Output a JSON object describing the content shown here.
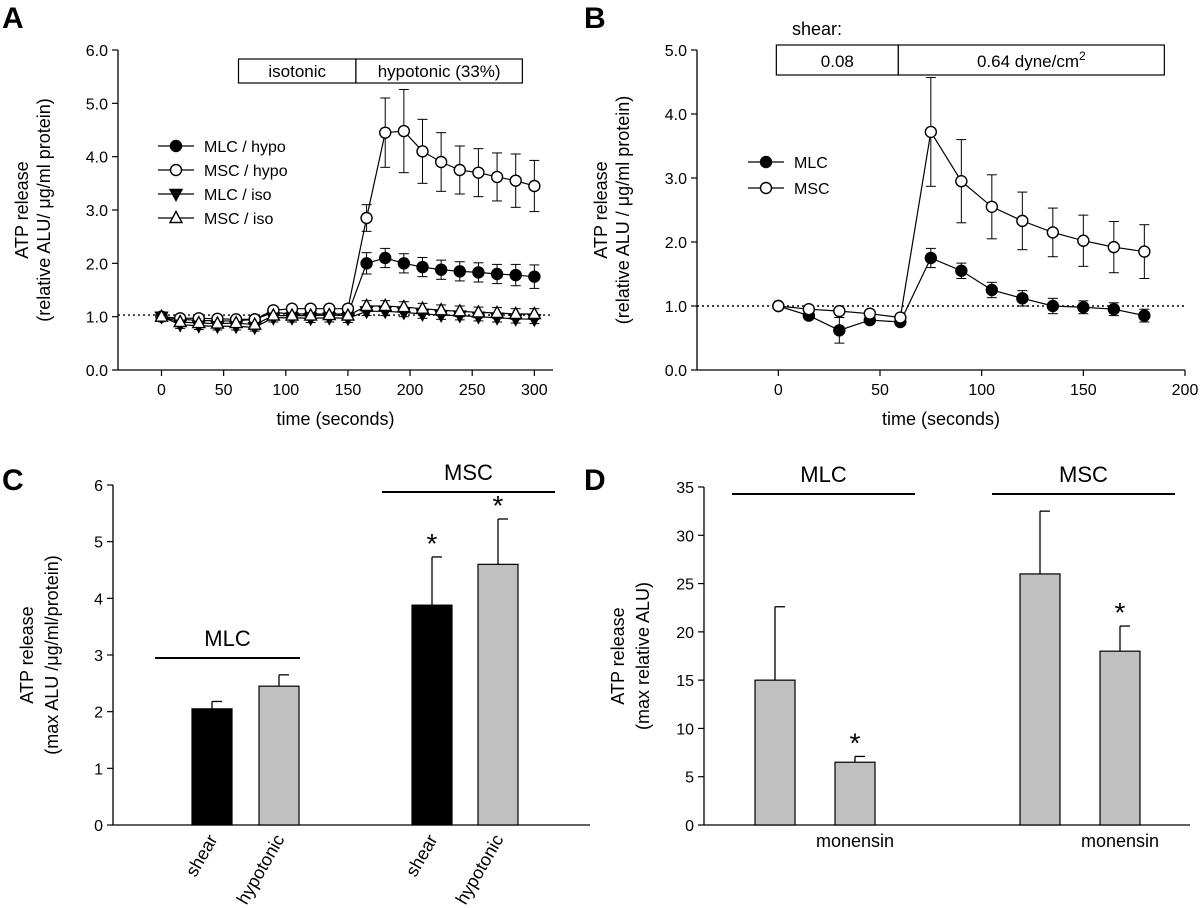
{
  "chart_data": [
    {
      "panel": "A",
      "type": "line",
      "xlabel": "time (seconds)",
      "ylabel": [
        "ATP release",
        "(relative ALU/ μg/ml protein)"
      ],
      "xlim": [
        -35,
        315
      ],
      "ylim": [
        0,
        6
      ],
      "xticks": [
        0,
        50,
        100,
        150,
        200,
        250,
        300
      ],
      "yticks": [
        0,
        1,
        2,
        3,
        4,
        5,
        6
      ],
      "xtick_labels": [
        "0",
        "50",
        "100",
        "150",
        "200",
        "250",
        "300"
      ],
      "ytick_labels": [
        "0.0",
        "1.0",
        "2.0",
        "3.0",
        "4.0",
        "5.0",
        "6.0"
      ],
      "baseline": 1.03,
      "boxes": [
        "isotonic",
        "hypotonic (33%)"
      ],
      "x": [
        0,
        15,
        30,
        45,
        60,
        75,
        90,
        105,
        120,
        135,
        150,
        165,
        180,
        195,
        210,
        225,
        240,
        255,
        270,
        285,
        300
      ],
      "series": [
        {
          "name": "MLC / hypo",
          "marker": "circle-filled",
          "values": [
            1.0,
            0.95,
            0.93,
            0.92,
            0.92,
            0.95,
            1.08,
            1.05,
            1.05,
            1.05,
            1.05,
            2.0,
            2.1,
            2.0,
            1.93,
            1.88,
            1.85,
            1.83,
            1.8,
            1.78,
            1.75
          ],
          "errors": [
            0.05,
            0.06,
            0.06,
            0.06,
            0.06,
            0.06,
            0.08,
            0.08,
            0.08,
            0.08,
            0.08,
            0.2,
            0.18,
            0.18,
            0.18,
            0.18,
            0.18,
            0.18,
            0.18,
            0.2,
            0.22
          ]
        },
        {
          "name": "MSC / hypo",
          "marker": "circle-open",
          "values": [
            1.0,
            0.97,
            0.97,
            0.96,
            0.95,
            0.95,
            1.12,
            1.15,
            1.15,
            1.15,
            1.15,
            2.85,
            4.45,
            4.48,
            4.1,
            3.9,
            3.75,
            3.7,
            3.62,
            3.55,
            3.45
          ],
          "errors": [
            0.05,
            0.05,
            0.05,
            0.05,
            0.05,
            0.05,
            0.06,
            0.06,
            0.06,
            0.06,
            0.06,
            0.25,
            0.65,
            0.78,
            0.6,
            0.55,
            0.45,
            0.45,
            0.45,
            0.5,
            0.48
          ]
        },
        {
          "name": "MLC / iso",
          "marker": "triangle-down-filled",
          "values": [
            1.0,
            0.85,
            0.83,
            0.82,
            0.82,
            0.8,
            0.98,
            0.98,
            0.97,
            0.98,
            0.97,
            1.1,
            1.1,
            1.08,
            1.05,
            1.03,
            1.02,
            1.0,
            0.98,
            0.96,
            0.95
          ],
          "errors": [
            0.05,
            0.07,
            0.07,
            0.07,
            0.07,
            0.07,
            0.08,
            0.08,
            0.08,
            0.08,
            0.08,
            0.08,
            0.08,
            0.08,
            0.08,
            0.08,
            0.08,
            0.08,
            0.08,
            0.08,
            0.08
          ]
        },
        {
          "name": "MSC / iso",
          "marker": "triangle-up-open",
          "values": [
            1.0,
            0.9,
            0.88,
            0.87,
            0.88,
            0.85,
            1.02,
            1.02,
            1.02,
            1.03,
            1.02,
            1.2,
            1.2,
            1.18,
            1.15,
            1.12,
            1.1,
            1.08,
            1.07,
            1.05,
            1.05
          ],
          "errors": [
            0.05,
            0.07,
            0.07,
            0.07,
            0.07,
            0.07,
            0.08,
            0.08,
            0.08,
            0.08,
            0.08,
            0.1,
            0.1,
            0.1,
            0.1,
            0.1,
            0.1,
            0.1,
            0.1,
            0.1,
            0.1
          ]
        }
      ]
    },
    {
      "panel": "B",
      "type": "line",
      "xlabel": "time (seconds)",
      "ylabel": [
        "ATP release",
        "(relative ALU / μg/ml protein)"
      ],
      "xlim": [
        -40,
        200
      ],
      "ylim": [
        0,
        5
      ],
      "xticks": [
        0,
        50,
        100,
        150,
        200
      ],
      "yticks": [
        0,
        1,
        2,
        3,
        4,
        5
      ],
      "xtick_labels": [
        "0",
        "50",
        "100",
        "150",
        "200"
      ],
      "ytick_labels": [
        "0.0",
        "1.0",
        "2.0",
        "3.0",
        "4.0",
        "5.0"
      ],
      "baseline": 1.0,
      "shear_label": "shear:",
      "boxes": [
        "0.08",
        "0.64 dyne/cm",
        "2"
      ],
      "x": [
        0,
        15,
        30,
        45,
        60,
        75,
        90,
        105,
        120,
        135,
        150,
        165,
        180
      ],
      "series": [
        {
          "name": "MLC",
          "marker": "circle-filled",
          "values": [
            1.0,
            0.85,
            0.62,
            0.78,
            0.75,
            1.75,
            1.55,
            1.25,
            1.12,
            1.0,
            0.98,
            0.95,
            0.85
          ],
          "errors": [
            0.02,
            0.05,
            0.2,
            0.05,
            0.05,
            0.15,
            0.12,
            0.12,
            0.12,
            0.12,
            0.1,
            0.1,
            0.1
          ]
        },
        {
          "name": "MSC",
          "marker": "circle-open",
          "values": [
            1.0,
            0.95,
            0.92,
            0.88,
            0.82,
            3.72,
            2.95,
            2.55,
            2.33,
            2.15,
            2.02,
            1.92,
            1.85
          ],
          "errors": [
            0.02,
            0.05,
            0.05,
            0.05,
            0.05,
            0.85,
            0.65,
            0.5,
            0.45,
            0.38,
            0.4,
            0.4,
            0.42
          ]
        }
      ]
    },
    {
      "panel": "C",
      "type": "bar",
      "ylabel": [
        "ATP release",
        "(max ALU /μg/ml/protein)"
      ],
      "ylim": [
        0,
        6
      ],
      "yticks": [
        0,
        1,
        2,
        3,
        4,
        5,
        6
      ],
      "ytick_labels": [
        "0",
        "1",
        "2",
        "3",
        "4",
        "5",
        "6"
      ],
      "groups": [
        {
          "label": "MLC",
          "bars": [
            {
              "category": "shear",
              "value": 2.05,
              "error": 0.13,
              "color": "#000000",
              "star": ""
            },
            {
              "category": "hypotonic",
              "value": 2.45,
              "error": 0.2,
              "color": "#c0c0c0",
              "star": ""
            }
          ]
        },
        {
          "label": "MSC",
          "bars": [
            {
              "category": "shear",
              "value": 3.88,
              "error": 0.85,
              "color": "#000000",
              "star": "*"
            },
            {
              "category": "hypotonic",
              "value": 4.6,
              "error": 0.8,
              "color": "#c0c0c0",
              "star": "*"
            }
          ]
        }
      ]
    },
    {
      "panel": "D",
      "type": "bar",
      "ylabel": [
        "ATP release",
        "(max relative ALU)"
      ],
      "ylim": [
        0,
        35
      ],
      "yticks": [
        0,
        5,
        10,
        15,
        20,
        25,
        30,
        35
      ],
      "ytick_labels": [
        "0",
        "5",
        "10",
        "15",
        "20",
        "25",
        "30",
        "35"
      ],
      "groups": [
        {
          "label": "MLC",
          "bars": [
            {
              "category": "",
              "value": 15.0,
              "error": 7.6,
              "color": "#c0c0c0",
              "star": ""
            },
            {
              "category": "monensin",
              "value": 6.5,
              "error": 0.6,
              "color": "#c0c0c0",
              "star": "*"
            }
          ]
        },
        {
          "label": "MSC",
          "bars": [
            {
              "category": "",
              "value": 26.0,
              "error": 6.5,
              "color": "#c0c0c0",
              "star": ""
            },
            {
              "category": "monensin",
              "value": 18.0,
              "error": 2.6,
              "color": "#c0c0c0",
              "star": "*"
            }
          ]
        }
      ]
    }
  ]
}
